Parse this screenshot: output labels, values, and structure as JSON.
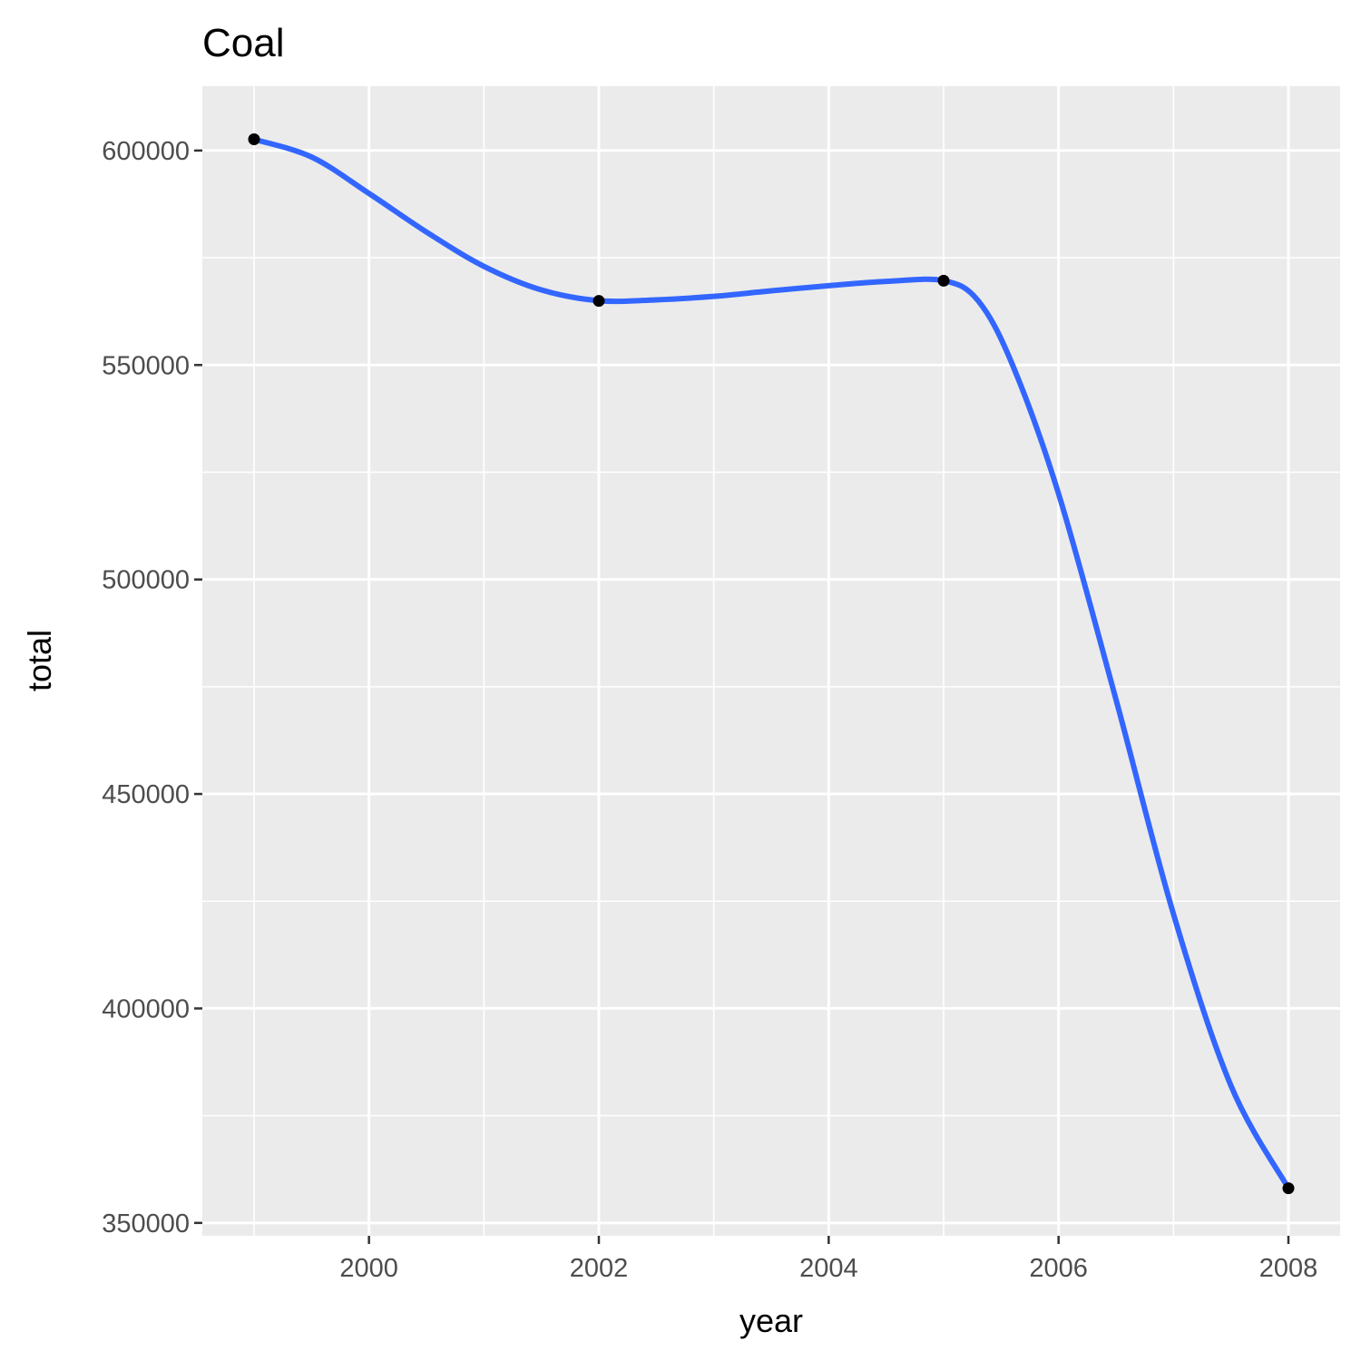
{
  "chart_data": {
    "type": "line",
    "title": "Coal",
    "xlabel": "year",
    "ylabel": "total",
    "xlim": [
      1998.55,
      2008.45
    ],
    "ylim": [
      347000,
      615000
    ],
    "x_ticks": [
      2000,
      2002,
      2004,
      2006,
      2008
    ],
    "x_tick_labels": [
      "2000",
      "2002",
      "2004",
      "2006",
      "2008"
    ],
    "y_ticks": [
      350000,
      400000,
      450000,
      500000,
      550000,
      600000
    ],
    "y_tick_labels": [
      "350000",
      "400000",
      "450000",
      "500000",
      "550000",
      "600000"
    ],
    "grid": true,
    "points": [
      {
        "x": 1999,
        "y": 602624
      },
      {
        "x": 2002,
        "y": 564940
      },
      {
        "x": 2005,
        "y": 569655
      },
      {
        "x": 2008,
        "y": 358083
      }
    ],
    "smooth": {
      "x": [
        1999,
        1999.5,
        2000,
        2000.5,
        2001,
        2001.5,
        2002,
        2002.5,
        2003,
        2003.5,
        2004,
        2004.5,
        2005,
        2005.3,
        2005.6,
        2006,
        2006.5,
        2007,
        2007.5,
        2008
      ],
      "y": [
        602624,
        598500,
        590000,
        581000,
        573000,
        567500,
        565000,
        565200,
        566000,
        567300,
        568500,
        569500,
        569655,
        565000,
        550000,
        520000,
        472000,
        422000,
        382000,
        358083
      ]
    },
    "colors": {
      "panel": "#ebebeb",
      "grid_major": "#ffffff",
      "line": "#3366ff",
      "point": "#000000"
    }
  }
}
